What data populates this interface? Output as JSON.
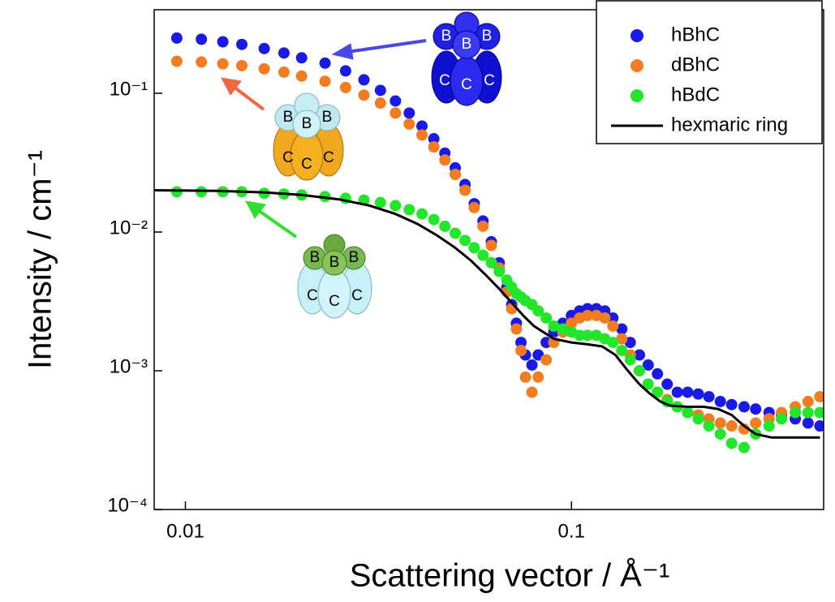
{
  "chart_data": {
    "type": "scatter",
    "x_label": "Scattering vector / Å⁻¹",
    "y_label": "Intensity / cm⁻¹",
    "xscale": "log",
    "yscale": "log",
    "xlim": [
      0.0083,
      0.45
    ],
    "ylim": [
      0.0001,
      0.4
    ],
    "xticks": [
      0.01,
      0.1
    ],
    "yticks": [
      {
        "value": 0.0001,
        "label": "10⁻⁴"
      },
      {
        "value": 0.001,
        "label": "10⁻³"
      },
      {
        "value": 0.01,
        "label": "10⁻²"
      },
      {
        "value": 0.1,
        "label": "10⁻¹"
      }
    ],
    "legend": "upper right",
    "series": [
      {
        "name": "hBhC",
        "color": "#1a1ae6",
        "style": "markers",
        "x": [
          0.0095,
          0.011,
          0.0125,
          0.014,
          0.016,
          0.018,
          0.02,
          0.023,
          0.026,
          0.029,
          0.032,
          0.035,
          0.038,
          0.041,
          0.044,
          0.047,
          0.05,
          0.053,
          0.056,
          0.059,
          0.062,
          0.065,
          0.068,
          0.07,
          0.072,
          0.074,
          0.076,
          0.079,
          0.082,
          0.086,
          0.09,
          0.095,
          0.1,
          0.105,
          0.11,
          0.116,
          0.122,
          0.128,
          0.135,
          0.142,
          0.15,
          0.158,
          0.167,
          0.177,
          0.188,
          0.2,
          0.213,
          0.227,
          0.243,
          0.26,
          0.28,
          0.3,
          0.325,
          0.35,
          0.38,
          0.41,
          0.44
        ],
        "values": [
          0.25,
          0.245,
          0.235,
          0.225,
          0.21,
          0.195,
          0.18,
          0.165,
          0.145,
          0.125,
          0.105,
          0.088,
          0.072,
          0.058,
          0.047,
          0.037,
          0.029,
          0.022,
          0.016,
          0.012,
          0.0085,
          0.006,
          0.004,
          0.003,
          0.0022,
          0.0016,
          0.0013,
          0.0011,
          0.0013,
          0.0016,
          0.0019,
          0.0022,
          0.0025,
          0.0027,
          0.0028,
          0.0028,
          0.0027,
          0.0024,
          0.002,
          0.0016,
          0.0013,
          0.0011,
          0.00095,
          0.0008,
          0.0007,
          0.0007,
          0.00068,
          0.00065,
          0.0006,
          0.00057,
          0.00055,
          0.00053,
          0.0005,
          0.00048,
          0.00045,
          0.00042,
          0.0004
        ]
      },
      {
        "name": "dBhC",
        "color": "#f47c20",
        "style": "markers",
        "x": [
          0.0095,
          0.011,
          0.0125,
          0.014,
          0.016,
          0.018,
          0.02,
          0.023,
          0.026,
          0.029,
          0.032,
          0.035,
          0.038,
          0.041,
          0.044,
          0.047,
          0.05,
          0.053,
          0.056,
          0.059,
          0.062,
          0.065,
          0.068,
          0.07,
          0.072,
          0.074,
          0.076,
          0.079,
          0.082,
          0.086,
          0.09,
          0.095,
          0.1,
          0.105,
          0.11,
          0.116,
          0.122,
          0.128,
          0.135,
          0.142,
          0.15,
          0.158,
          0.167,
          0.177,
          0.188,
          0.2,
          0.213,
          0.227,
          0.243,
          0.26,
          0.28,
          0.3,
          0.325,
          0.35,
          0.38,
          0.41,
          0.44
        ],
        "values": [
          0.17,
          0.168,
          0.163,
          0.158,
          0.15,
          0.142,
          0.133,
          0.122,
          0.11,
          0.097,
          0.085,
          0.072,
          0.06,
          0.05,
          0.041,
          0.033,
          0.026,
          0.02,
          0.015,
          0.011,
          0.008,
          0.0055,
          0.0037,
          0.0028,
          0.002,
          0.0014,
          0.0009,
          0.0007,
          0.0009,
          0.0012,
          0.0016,
          0.0019,
          0.0022,
          0.0024,
          0.0025,
          0.0025,
          0.0024,
          0.0021,
          0.0017,
          0.0013,
          0.001,
          0.0008,
          0.0007,
          0.00062,
          0.00055,
          0.0005,
          0.00048,
          0.00045,
          0.00042,
          0.0004,
          0.00038,
          0.00042,
          0.00045,
          0.0005,
          0.00055,
          0.0006,
          0.00065
        ]
      },
      {
        "name": "hBdC",
        "color": "#22e62a",
        "style": "markers",
        "x": [
          0.0095,
          0.011,
          0.0125,
          0.014,
          0.016,
          0.018,
          0.02,
          0.023,
          0.026,
          0.029,
          0.032,
          0.035,
          0.038,
          0.041,
          0.044,
          0.047,
          0.05,
          0.053,
          0.056,
          0.059,
          0.062,
          0.065,
          0.068,
          0.07,
          0.072,
          0.074,
          0.076,
          0.079,
          0.082,
          0.086,
          0.09,
          0.095,
          0.1,
          0.105,
          0.11,
          0.116,
          0.122,
          0.128,
          0.135,
          0.142,
          0.15,
          0.158,
          0.167,
          0.177,
          0.188,
          0.2,
          0.213,
          0.227,
          0.243,
          0.26,
          0.28,
          0.3,
          0.325,
          0.35,
          0.38,
          0.41,
          0.44
        ],
        "values": [
          0.0195,
          0.0195,
          0.0195,
          0.0195,
          0.019,
          0.0188,
          0.0185,
          0.018,
          0.0175,
          0.017,
          0.0163,
          0.0155,
          0.0145,
          0.0135,
          0.0123,
          0.011,
          0.0098,
          0.0087,
          0.0077,
          0.0068,
          0.006,
          0.0052,
          0.0045,
          0.004,
          0.0036,
          0.0034,
          0.0032,
          0.003,
          0.0027,
          0.0024,
          0.0021,
          0.002,
          0.0019,
          0.0018,
          0.0018,
          0.0018,
          0.0017,
          0.0016,
          0.0014,
          0.0012,
          0.001,
          0.0008,
          0.0007,
          0.0006,
          0.00055,
          0.0005,
          0.00045,
          0.0004,
          0.00035,
          0.0003,
          0.00028,
          0.00035,
          0.0004,
          0.00045,
          0.0005,
          0.0005,
          0.0005
        ]
      },
      {
        "name": "hexmaric ring",
        "color": "#000000",
        "style": "line",
        "x": [
          0.0083,
          0.012,
          0.016,
          0.02,
          0.025,
          0.03,
          0.035,
          0.04,
          0.045,
          0.05,
          0.055,
          0.06,
          0.065,
          0.07,
          0.075,
          0.08,
          0.09,
          0.1,
          0.11,
          0.12,
          0.13,
          0.14,
          0.15,
          0.16,
          0.17,
          0.18,
          0.2,
          0.22,
          0.24,
          0.26,
          0.28,
          0.3,
          0.33,
          0.36,
          0.4,
          0.44
        ],
        "values": [
          0.02,
          0.0198,
          0.0193,
          0.0185,
          0.0172,
          0.0155,
          0.0135,
          0.0114,
          0.0094,
          0.0077,
          0.0062,
          0.0049,
          0.0039,
          0.0031,
          0.0025,
          0.0021,
          0.0017,
          0.0016,
          0.00155,
          0.0015,
          0.0013,
          0.001,
          0.0008,
          0.00068,
          0.0006,
          0.00056,
          0.00055,
          0.00055,
          0.00053,
          0.00048,
          0.0004,
          0.00035,
          0.00033,
          0.00033,
          0.00033,
          0.00033
        ]
      }
    ],
    "annotations": [
      {
        "top": "B",
        "bottom": "C"
      },
      {
        "top": "B",
        "bottom": "C"
      },
      {
        "top": "B",
        "bottom": "C"
      }
    ]
  }
}
